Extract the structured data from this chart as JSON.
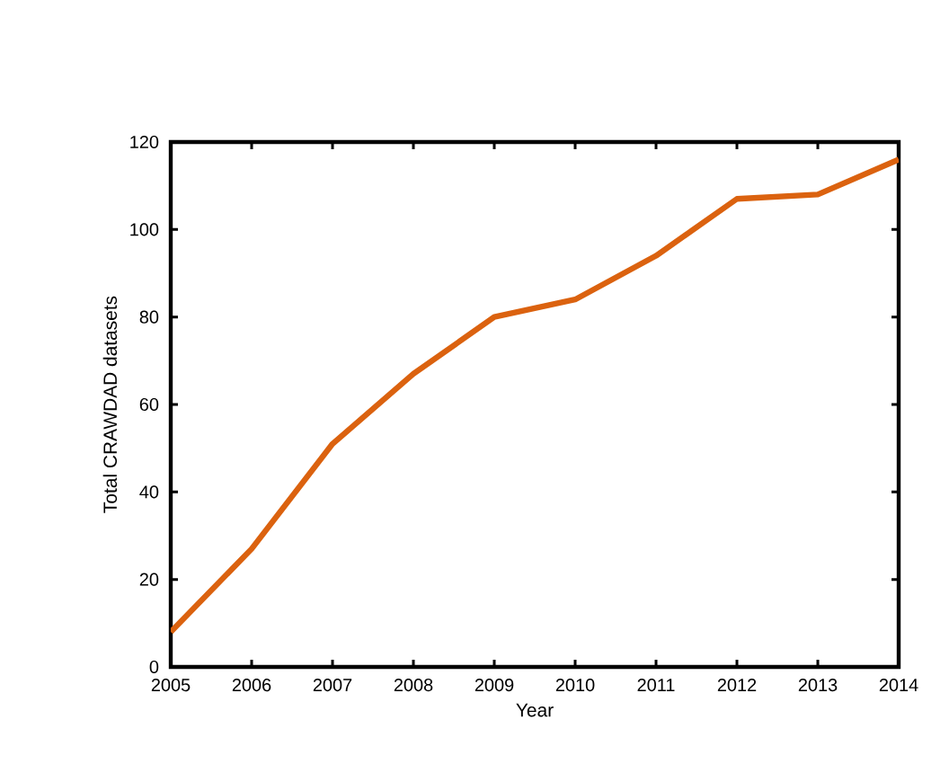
{
  "chart_data": {
    "type": "line",
    "xlabel": "Year",
    "ylabel": "Total CRAWDAD datasets",
    "x": [
      2005,
      2006,
      2007,
      2008,
      2009,
      2010,
      2011,
      2012,
      2013,
      2014
    ],
    "series": [
      {
        "color": "#db620f",
        "values": [
          8,
          27,
          51,
          67,
          80,
          84,
          94,
          107,
          108,
          116
        ]
      }
    ],
    "xlim": [
      2005,
      2014
    ],
    "ylim": [
      0,
      120
    ],
    "xticks": [
      2005,
      2006,
      2007,
      2008,
      2009,
      2010,
      2011,
      2012,
      2013,
      2014
    ],
    "yticks": [
      0,
      20,
      40,
      60,
      80,
      100,
      120
    ],
    "marker": "none",
    "line_style": "solid"
  }
}
